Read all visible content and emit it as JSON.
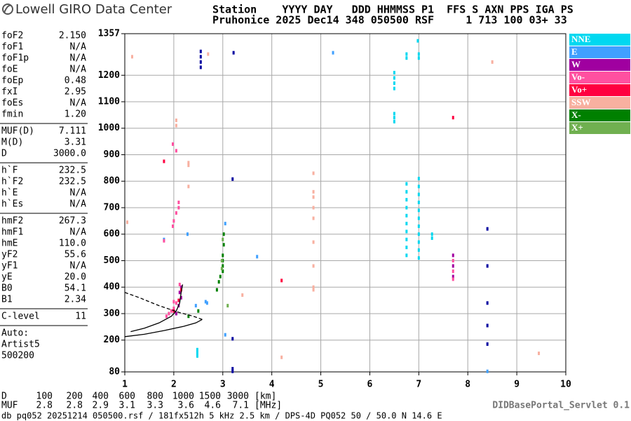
{
  "header": {
    "logo": "Lowell GIRO Data Center",
    "line1": "Station    YYYY DAY   DDD HHMMSS P1  FFS S AXN PPS IGA PS",
    "line2": "Pruhonice 2025 Dec14 348 050500 RSF     1 713 100 03+ 33"
  },
  "params": [
    [
      [
        "foF2",
        "2.150"
      ],
      [
        "foF1",
        "N/A"
      ],
      [
        "foF1p",
        "N/A"
      ],
      [
        "foE",
        "N/A"
      ],
      [
        "foEp",
        "0.48"
      ],
      [
        "fxI",
        "2.95"
      ],
      [
        "foEs",
        "N/A"
      ],
      [
        "fmin",
        "1.20"
      ]
    ],
    [
      [
        "MUF(D)",
        "7.111"
      ],
      [
        "M(D)",
        "3.31"
      ],
      [
        "D",
        "3000.0"
      ]
    ],
    [
      [
        "h`F",
        "232.5"
      ],
      [
        "h`F2",
        "232.5"
      ],
      [
        "h`E",
        "N/A"
      ],
      [
        "h`Es",
        "N/A"
      ]
    ],
    [
      [
        "hmF2",
        "267.3"
      ],
      [
        "hmF1",
        "N/A"
      ],
      [
        "hmE",
        "110.0"
      ],
      [
        "yF2",
        "55.6"
      ],
      [
        "yF1",
        "N/A"
      ],
      [
        "yE",
        "20.0"
      ],
      [
        "B0",
        "54.1"
      ],
      [
        "B1",
        "2.34"
      ]
    ],
    [
      [
        "C-level",
        "11"
      ]
    ]
  ],
  "auto": [
    "Auto:",
    "Artist5",
    "500200"
  ],
  "chart_data": {
    "type": "scatter",
    "xlim": [
      1,
      10
    ],
    "ylim": [
      80,
      1357
    ],
    "xticks": [
      1,
      2,
      3,
      4,
      5,
      6,
      7,
      8,
      9,
      10
    ],
    "yticks": [
      80,
      200,
      300,
      400,
      500,
      600,
      700,
      800,
      900,
      1000,
      1100,
      1200,
      1357
    ],
    "grid": true,
    "series": [
      {
        "name": "NNE",
        "color": "#00d8f0",
        "x": [
          6.75,
          6.75,
          6.75,
          6.75,
          6.75,
          6.75,
          6.75,
          6.75,
          6.75,
          6.75,
          7.0,
          7.0,
          7.0,
          7.0,
          7.0,
          7.0,
          7.0,
          7.0,
          7.0,
          7.0,
          7.0,
          6.5,
          6.5,
          6.5,
          6.5,
          6.5,
          6.5,
          6.5,
          6.75,
          6.75,
          7.0,
          7.0,
          7.27,
          7.27,
          2.48,
          2.48,
          2.48,
          6.98
        ],
        "values": [
          520,
          550,
          580,
          610,
          640,
          670,
          700,
          730,
          760,
          790,
          510,
          540,
          570,
          600,
          630,
          660,
          690,
          720,
          750,
          780,
          810,
          1025,
          1040,
          1055,
          1150,
          1170,
          1190,
          1210,
          1265,
          1280,
          1265,
          1280,
          585,
          600,
          140,
          152,
          164,
          1330
        ]
      },
      {
        "name": "E",
        "color": "#40a0ff",
        "x": [
          1.8,
          2.28,
          2.68,
          3.05,
          3.05,
          3.7,
          5.25,
          2.65,
          8.4,
          2.45
        ],
        "values": [
          580,
          600,
          340,
          640,
          220,
          515,
          1285,
          345,
          82,
          330
        ]
      },
      {
        "name": "W",
        "color": "#a000a0",
        "x": [
          2.05,
          2.1,
          2.15,
          2.15,
          2.12,
          7.7,
          7.7,
          7.7
        ],
        "values": [
          300,
          330,
          360,
          400,
          380,
          520,
          480,
          440
        ]
      },
      {
        "name": "Vo-",
        "color": "#ff50a0",
        "x": [
          1.85,
          1.9,
          1.95,
          2.0,
          2.05,
          1.98,
          2.0,
          2.05,
          2.1,
          2.1,
          1.8,
          7.7,
          7.7,
          7.7,
          1.98,
          2.05,
          2.12,
          2.0
        ],
        "values": [
          290,
          300,
          310,
          320,
          340,
          630,
          650,
          680,
          700,
          720,
          575,
          500,
          460,
          430,
          940,
          915,
          410,
          345
        ]
      },
      {
        "name": "Vo+",
        "color": "#ff0040",
        "x": [
          2.0,
          2.1,
          1.8,
          7.7,
          4.2,
          2.15
        ],
        "values": [
          310,
          350,
          875,
          1040,
          425,
          390
        ]
      },
      {
        "name": "SSW",
        "color": "#f8b0a0",
        "x": [
          1.15,
          2.05,
          2.05,
          2.3,
          2.3,
          2.3,
          2.7,
          3.4,
          4.85,
          4.85,
          4.85,
          4.85,
          4.85,
          4.85,
          4.85,
          4.85,
          4.85,
          9.45,
          4.2,
          1.05,
          8.5
        ],
        "values": [
          1270,
          1030,
          1010,
          870,
          860,
          780,
          1280,
          370,
          830,
          760,
          740,
          700,
          660,
          570,
          480,
          400,
          390,
          150,
          135,
          645,
          1250
        ]
      },
      {
        "name": "X-",
        "color": "#008000",
        "x": [
          2.5,
          2.3,
          2.88,
          2.92,
          2.95,
          3.0,
          3.0,
          3.0,
          3.0,
          3.02,
          3.02
        ],
        "values": [
          310,
          290,
          390,
          420,
          440,
          460,
          480,
          500,
          520,
          560,
          600
        ]
      },
      {
        "name": "X+",
        "color": "#70b050",
        "x": [
          2.98,
          3.0,
          3.1,
          2.98
        ],
        "values": [
          500,
          580,
          330,
          470
        ]
      },
      {
        "color": "#0000a0",
        "x": [
          2.55,
          2.55,
          2.55,
          2.55,
          3.22,
          8.4,
          8.4,
          8.4,
          8.4,
          8.4,
          3.2,
          3.2,
          3.2,
          3.2
        ],
        "values": [
          1290,
          1270,
          1250,
          1230,
          1285,
          620,
          480,
          340,
          255,
          185,
          808,
          205,
          92,
          82
        ]
      }
    ],
    "lines": [
      {
        "color": "#000000",
        "dash": false,
        "x": [
          1.0,
          1.4,
          1.8,
          2.2,
          2.45,
          2.58
        ],
        "values": [
          213,
          222,
          236,
          252,
          265,
          278
        ]
      },
      {
        "color": "#000000",
        "dash": false,
        "x": [
          1.12,
          1.4,
          1.7,
          1.95,
          2.05,
          2.12,
          2.15,
          2.18
        ],
        "values": [
          232,
          245,
          265,
          290,
          310,
          340,
          380,
          410
        ]
      },
      {
        "color": "#000000",
        "dash": true,
        "x": [
          1.0,
          1.3,
          1.7,
          2.1,
          2.4,
          2.58
        ],
        "values": [
          380,
          360,
          330,
          305,
          290,
          278
        ]
      }
    ]
  },
  "muf_table": {
    "rows": [
      [
        "D",
        "100",
        "200",
        "400",
        "600",
        "800",
        "1000",
        "1500",
        "3000",
        "[km]"
      ],
      [
        "MUF",
        "2.8",
        "2.8",
        "2.9",
        "3.1",
        "3.3",
        "3.6",
        "4.6",
        "7.1",
        "[MHz]"
      ]
    ]
  },
  "footer": {
    "info": "db pq052 20251214 050500.rsf / 181fx512h 5 kHz 2.5 km / DPS-4D PQ052 50 / 50.0 N 14.6 E",
    "servlet": "DIDBasePortal_Servlet 0.1"
  }
}
